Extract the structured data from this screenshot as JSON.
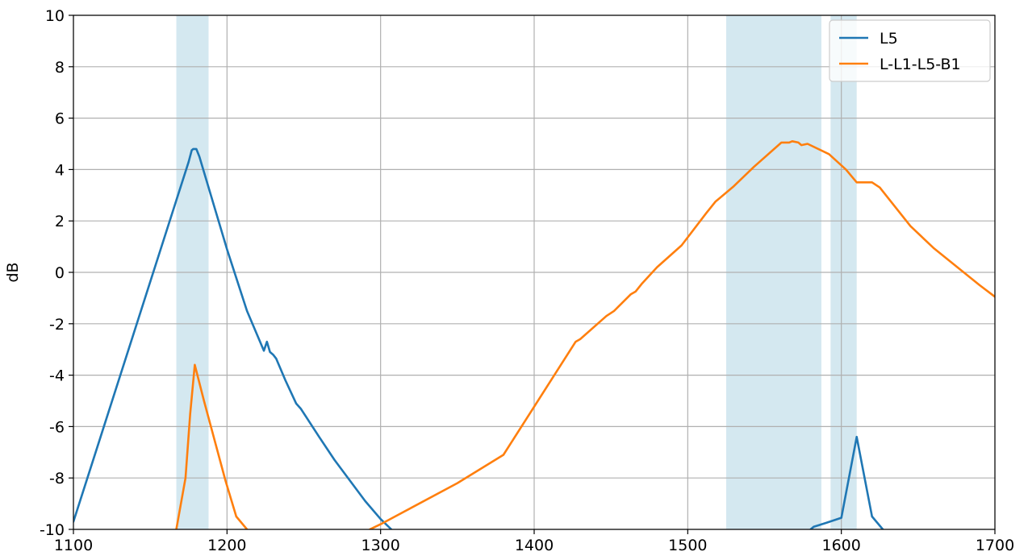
{
  "chart_data": {
    "type": "line",
    "title": "",
    "xlabel": "",
    "ylabel": "dB",
    "xlim": [
      1100,
      1700
    ],
    "ylim": [
      -10,
      10
    ],
    "x_ticks": [
      1100,
      1200,
      1300,
      1400,
      1500,
      1600,
      1700
    ],
    "y_ticks": [
      -10,
      -8,
      -6,
      -4,
      -2,
      0,
      2,
      4,
      6,
      8,
      10
    ],
    "grid": true,
    "legend_position": "top-right",
    "shaded_bands": [
      {
        "x_start": 1167,
        "x_end": 1188,
        "color": "#d4e8f0"
      },
      {
        "x_start": 1525,
        "x_end": 1587,
        "color": "#d4e8f0"
      },
      {
        "x_start": 1593,
        "x_end": 1610,
        "color": "#d4e8f0"
      }
    ],
    "series": [
      {
        "name": "L5",
        "color": "#1f77b4",
        "points": [
          [
            1100,
            -9.7
          ],
          [
            1175,
            4.3
          ],
          [
            1177,
            4.75
          ],
          [
            1178,
            4.8
          ],
          [
            1180,
            4.8
          ],
          [
            1182,
            4.5
          ],
          [
            1200,
            0.9
          ],
          [
            1213,
            -1.5
          ],
          [
            1224,
            -3.05
          ],
          [
            1226,
            -2.7
          ],
          [
            1228,
            -3.1
          ],
          [
            1230,
            -3.2
          ],
          [
            1232,
            -3.35
          ],
          [
            1238,
            -4.2
          ],
          [
            1245,
            -5.1
          ],
          [
            1248,
            -5.3
          ],
          [
            1260,
            -6.4
          ],
          [
            1270,
            -7.3
          ],
          [
            1290,
            -8.9
          ],
          [
            1300,
            -9.6
          ],
          [
            1307,
            -10
          ]
        ]
      },
      {
        "name": "L5",
        "color": "#1f77b4",
        "points": [
          [
            1580,
            -10
          ],
          [
            1582,
            -9.9
          ],
          [
            1590,
            -9.75
          ],
          [
            1600,
            -9.55
          ],
          [
            1610,
            -6.4
          ],
          [
            1620,
            -9.5
          ],
          [
            1627,
            -10
          ]
        ]
      },
      {
        "name": "L-L1-L5-B1",
        "color": "#ff7f0e",
        "points": [
          [
            1167,
            -10
          ],
          [
            1173,
            -8.0
          ],
          [
            1176,
            -5.5
          ],
          [
            1179,
            -3.6
          ],
          [
            1185,
            -5.0
          ],
          [
            1199,
            -8.1
          ],
          [
            1206,
            -9.5
          ],
          [
            1213,
            -10
          ]
        ]
      },
      {
        "name": "L-L1-L5-B1",
        "color": "#ff7f0e",
        "points": [
          [
            1293,
            -10
          ],
          [
            1300,
            -9.8
          ],
          [
            1350,
            -8.2
          ],
          [
            1380,
            -7.1
          ],
          [
            1427,
            -2.7
          ],
          [
            1430,
            -2.6
          ],
          [
            1447,
            -1.7
          ],
          [
            1452,
            -1.5
          ],
          [
            1463,
            -0.85
          ],
          [
            1466,
            -0.75
          ],
          [
            1470,
            -0.45
          ],
          [
            1480,
            0.2
          ],
          [
            1496,
            1.05
          ],
          [
            1512,
            2.3
          ],
          [
            1518,
            2.75
          ],
          [
            1530,
            3.35
          ],
          [
            1543,
            4.1
          ],
          [
            1561,
            5.05
          ],
          [
            1566,
            5.05
          ],
          [
            1568,
            5.1
          ],
          [
            1572,
            5.05
          ],
          [
            1574,
            4.95
          ],
          [
            1578,
            5.0
          ],
          [
            1592,
            4.6
          ],
          [
            1603,
            4.0
          ],
          [
            1610,
            3.5
          ],
          [
            1620,
            3.5
          ],
          [
            1625,
            3.3
          ],
          [
            1645,
            1.8
          ],
          [
            1660,
            0.95
          ],
          [
            1690,
            -0.5
          ],
          [
            1700,
            -0.95
          ]
        ]
      }
    ],
    "legend": [
      {
        "label": "L5",
        "color": "#1f77b4"
      },
      {
        "label": "L-L1-L5-B1",
        "color": "#ff7f0e"
      }
    ]
  }
}
